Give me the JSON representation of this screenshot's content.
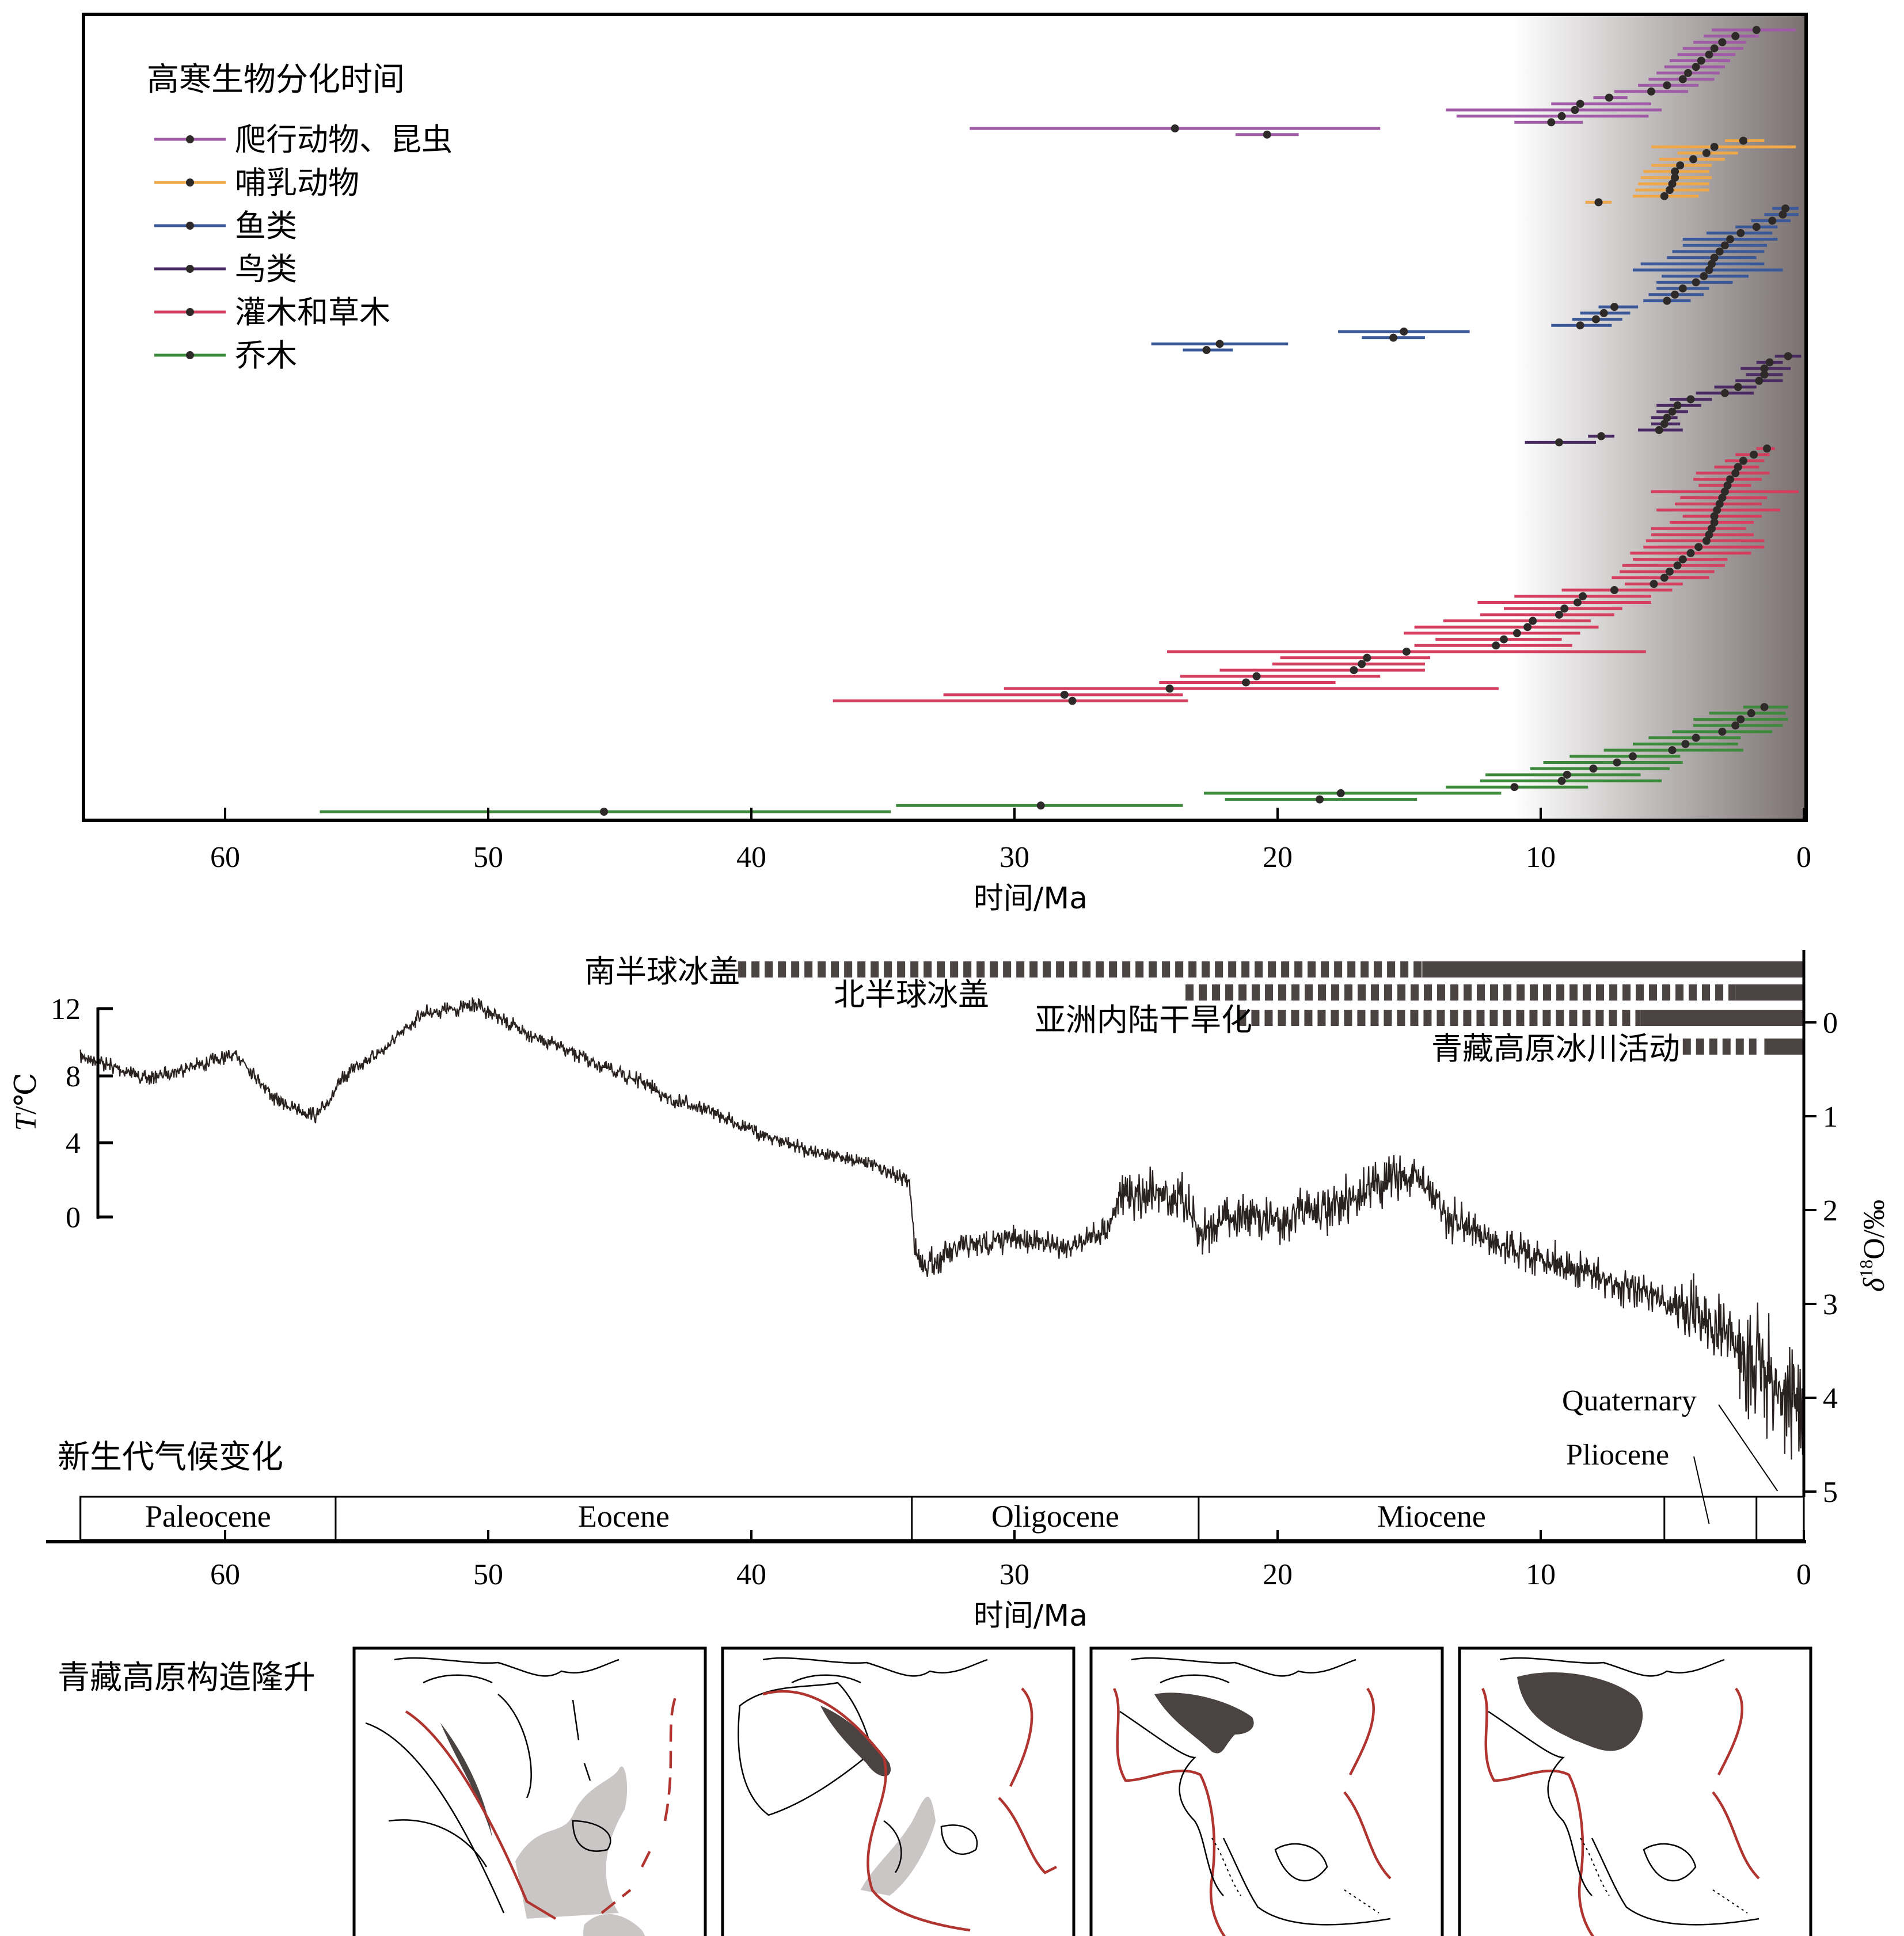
{
  "chart_data": [
    {
      "type": "interval",
      "title": "",
      "xlabel": "时间/Ma",
      "xlim": [
        65.5,
        0
      ],
      "x_reversed": true,
      "xticks": [
        "60",
        "50",
        "40",
        "30",
        "20",
        "10",
        "0"
      ],
      "legend_title": "高寒生物分化时间",
      "legend_position": "top-left",
      "background_gradient": {
        "from_age": 11,
        "color_start": "#ffffff",
        "color_end": "#7a7070"
      },
      "series": [
        {
          "name": "爬行动物、昆虫",
          "color": "#a05ba6",
          "intervals": [
            [
              1.8,
              0.3,
              3.5
            ],
            [
              2.6,
              1.7,
              3.8
            ],
            [
              3.1,
              2.2,
              4.2
            ],
            [
              3.4,
              2.3,
              4.6
            ],
            [
              3.6,
              2.6,
              4.8
            ],
            [
              3.9,
              2.8,
              5.1
            ],
            [
              4.1,
              3.0,
              5.3
            ],
            [
              4.4,
              3.2,
              5.6
            ],
            [
              4.6,
              3.4,
              5.9
            ],
            [
              5.2,
              4.0,
              6.3
            ],
            [
              5.8,
              4.4,
              7.2
            ],
            [
              7.4,
              6.7,
              8.0
            ],
            [
              8.5,
              5.8,
              9.6
            ],
            [
              8.7,
              5.4,
              13.6
            ],
            [
              9.2,
              5.9,
              13.2
            ],
            [
              9.6,
              8.4,
              11.0
            ],
            [
              23.9,
              16.1,
              31.7
            ],
            [
              20.4,
              19.2,
              21.6
            ]
          ]
        },
        {
          "name": "哺乳动物",
          "color": "#eea849",
          "intervals": [
            [
              2.3,
              1.5,
              3.0
            ],
            [
              3.4,
              0.3,
              5.8
            ],
            [
              3.7,
              2.5,
              4.8
            ],
            [
              4.2,
              3.0,
              5.5
            ],
            [
              4.7,
              3.5,
              5.8
            ],
            [
              4.9,
              3.6,
              6.1
            ],
            [
              4.9,
              3.5,
              6.2
            ],
            [
              5.0,
              3.6,
              6.3
            ],
            [
              5.1,
              3.6,
              6.4
            ],
            [
              5.3,
              4.0,
              6.5
            ],
            [
              7.8,
              7.3,
              8.3
            ]
          ]
        },
        {
          "name": "鱼类",
          "color": "#3b5899",
          "intervals": [
            [
              0.7,
              0.2,
              1.2
            ],
            [
              0.8,
              0.2,
              1.5
            ],
            [
              1.2,
              0.5,
              2.0
            ],
            [
              1.8,
              1.0,
              2.6
            ],
            [
              2.4,
              1.2,
              3.7
            ],
            [
              2.8,
              1.0,
              4.6
            ],
            [
              3.0,
              1.4,
              4.6
            ],
            [
              3.2,
              1.5,
              5.0
            ],
            [
              3.4,
              1.8,
              5.2
            ],
            [
              3.5,
              1.5,
              6.2
            ],
            [
              3.6,
              0.8,
              6.5
            ],
            [
              3.8,
              2.1,
              5.4
            ],
            [
              4.1,
              2.7,
              5.6
            ],
            [
              4.6,
              3.6,
              5.6
            ],
            [
              4.9,
              3.8,
              5.9
            ],
            [
              5.2,
              4.3,
              6.1
            ],
            [
              7.2,
              6.3,
              7.8
            ],
            [
              7.6,
              6.6,
              8.5
            ],
            [
              7.9,
              6.9,
              8.8
            ],
            [
              8.5,
              7.3,
              9.6
            ],
            [
              15.2,
              12.7,
              17.7
            ],
            [
              15.6,
              14.4,
              16.8
            ],
            [
              22.2,
              19.6,
              24.8
            ],
            [
              22.7,
              21.7,
              23.6
            ]
          ]
        },
        {
          "name": "鸟类",
          "color": "#4a2a63",
          "intervals": [
            [
              0.6,
              0.1,
              1.1
            ],
            [
              1.3,
              0.8,
              1.8
            ],
            [
              1.5,
              0.5,
              2.4
            ],
            [
              1.5,
              0.8,
              2.2
            ],
            [
              1.7,
              0.8,
              2.6
            ],
            [
              2.5,
              1.8,
              3.4
            ],
            [
              3.0,
              1.9,
              4.1
            ],
            [
              4.3,
              3.5,
              5.1
            ],
            [
              4.8,
              3.9,
              5.6
            ],
            [
              5.0,
              4.4,
              5.6
            ],
            [
              5.2,
              4.8,
              5.8
            ],
            [
              5.3,
              4.7,
              5.8
            ],
            [
              5.5,
              4.6,
              6.3
            ],
            [
              7.7,
              7.2,
              8.2
            ],
            [
              9.3,
              7.9,
              10.6
            ]
          ]
        },
        {
          "name": "灌木和草木",
          "color": "#d43f5f",
          "intervals": [
            [
              1.4,
              1.1,
              1.8
            ],
            [
              1.9,
              1.3,
              2.6
            ],
            [
              2.3,
              1.5,
              3.0
            ],
            [
              2.5,
              1.7,
              3.4
            ],
            [
              2.6,
              1.3,
              4.1
            ],
            [
              2.8,
              1.6,
              4.2
            ],
            [
              2.9,
              2.0,
              4.0
            ],
            [
              3.0,
              0.2,
              5.8
            ],
            [
              3.1,
              1.4,
              4.7
            ],
            [
              3.2,
              1.6,
              4.9
            ],
            [
              3.3,
              0.9,
              5.6
            ],
            [
              3.4,
              1.6,
              4.6
            ],
            [
              3.4,
              1.9,
              5.1
            ],
            [
              3.5,
              2.2,
              5.8
            ],
            [
              3.6,
              1.9,
              5.8
            ],
            [
              3.7,
              1.5,
              6.0
            ],
            [
              4.0,
              1.5,
              6.1
            ],
            [
              4.3,
              2.0,
              6.6
            ],
            [
              4.6,
              2.9,
              6.5
            ],
            [
              4.8,
              3.0,
              6.9
            ],
            [
              5.1,
              3.4,
              7.0
            ],
            [
              5.3,
              3.6,
              7.3
            ],
            [
              5.7,
              4.6,
              6.8
            ],
            [
              7.2,
              5.0,
              9.2
            ],
            [
              8.4,
              5.8,
              11.0
            ],
            [
              8.6,
              5.8,
              12.4
            ],
            [
              9.1,
              6.9,
              11.4
            ],
            [
              9.3,
              7.2,
              12.3
            ],
            [
              10.3,
              8.1,
              13.7
            ],
            [
              10.5,
              7.8,
              14.8
            ],
            [
              10.9,
              8.5,
              15.2
            ],
            [
              11.4,
              9.2,
              14.0
            ],
            [
              11.7,
              8.8,
              14.8
            ],
            [
              15.1,
              6.0,
              24.2
            ],
            [
              16.6,
              14.2,
              19.9
            ],
            [
              16.8,
              14.4,
              20.2
            ],
            [
              17.1,
              14.4,
              22.2
            ],
            [
              20.8,
              16.1,
              23.7
            ],
            [
              21.2,
              17.8,
              24.5
            ],
            [
              24.1,
              11.6,
              30.4
            ],
            [
              28.1,
              23.6,
              32.7
            ],
            [
              27.8,
              23.4,
              36.9
            ]
          ]
        },
        {
          "name": "乔木",
          "color": "#3e8a3c",
          "intervals": [
            [
              1.5,
              0.6,
              2.3
            ],
            [
              2.0,
              0.7,
              3.6
            ],
            [
              2.4,
              0.6,
              4.2
            ],
            [
              2.6,
              0.8,
              4.2
            ],
            [
              3.1,
              1.2,
              5.0
            ],
            [
              4.1,
              2.4,
              5.9
            ],
            [
              4.5,
              2.5,
              6.5
            ],
            [
              5.0,
              2.3,
              7.6
            ],
            [
              6.5,
              4.7,
              8.9
            ],
            [
              7.1,
              4.6,
              9.9
            ],
            [
              8.0,
              5.1,
              10.4
            ],
            [
              9.0,
              6.2,
              12.1
            ],
            [
              9.2,
              5.4,
              12.3
            ],
            [
              11.0,
              8.2,
              13.6
            ],
            [
              17.6,
              11.5,
              22.8
            ],
            [
              18.4,
              14.7,
              22.0
            ],
            [
              29.0,
              23.6,
              34.5
            ],
            [
              45.6,
              34.7,
              56.4
            ]
          ]
        }
      ]
    },
    {
      "type": "line",
      "title": "新生代气候变化",
      "xlabel": "时间/Ma",
      "xlim": [
        65.5,
        0
      ],
      "x_reversed": true,
      "xticks": [
        "60",
        "50",
        "40",
        "30",
        "20",
        "10",
        "0"
      ],
      "left_axis": {
        "label_italic": "T",
        "label_unit": "/℃",
        "ticks": [
          "12",
          "8",
          "4",
          "0"
        ],
        "range": [
          0,
          12
        ]
      },
      "right_axis": {
        "label_italic": "δ",
        "label_sup": "18",
        "label_rest": "O/‰",
        "ticks": [
          "0",
          "1",
          "2",
          "3",
          "4",
          "5"
        ],
        "range": [
          0,
          5
        ],
        "reversed": true
      },
      "series_color": "#2a2220",
      "series": [
        {
          "x": [
            65.5,
            63,
            61,
            59.5,
            58,
            56.5,
            55.5,
            55,
            54,
            52.5,
            51,
            50.5,
            49,
            47,
            45,
            44,
            43,
            42.5,
            41.5,
            40,
            38,
            35.5,
            34,
            33.8,
            33.5,
            32,
            30,
            28,
            26.5,
            26,
            25,
            23.5,
            23,
            22,
            20,
            18,
            16.5,
            15.5,
            14.5,
            13.5,
            12,
            10,
            8,
            6,
            4,
            3,
            2,
            1,
            0
          ],
          "y": [
            0.35,
            0.6,
            0.45,
            0.35,
            0.85,
            1.0,
            0.6,
            0.45,
            0.3,
            -0.1,
            -0.15,
            -0.2,
            0.05,
            0.3,
            0.55,
            0.65,
            0.85,
            0.85,
            0.95,
            1.15,
            1.35,
            1.5,
            1.7,
            2.4,
            2.6,
            2.4,
            2.3,
            2.4,
            2.2,
            1.85,
            1.8,
            1.9,
            2.3,
            2.05,
            2.1,
            2.0,
            1.75,
            1.65,
            1.7,
            2.1,
            2.3,
            2.5,
            2.7,
            2.9,
            3.1,
            3.3,
            3.6,
            3.9,
            4.1
          ]
        }
      ],
      "bars": [
        {
          "label": "南半球冰盖",
          "dashed": [
            40.5,
            14.5
          ],
          "solid": [
            14.5,
            0
          ]
        },
        {
          "label": "北半球冰盖",
          "dashed": [
            23.5,
            2.6
          ],
          "solid": [
            2.6,
            0
          ]
        },
        {
          "label": "亚洲内陆干旱化",
          "dashed": [
            21.5,
            6.2
          ],
          "solid": [
            6.2,
            0
          ]
        },
        {
          "label": "青藏高原冰川活动",
          "dashed": [
            4.6,
            1.8
          ],
          "solid": [
            1.5,
            0
          ]
        }
      ],
      "epochs": [
        {
          "name": "Paleocene",
          "from": 65.5,
          "to": 55.8
        },
        {
          "name": "Eocene",
          "from": 55.8,
          "to": 33.9
        },
        {
          "name": "Oligocene",
          "from": 33.9,
          "to": 23.0
        },
        {
          "name": "Miocene",
          "from": 23.0,
          "to": 5.3
        },
        {
          "name": "",
          "from": 5.3,
          "to": 1.8
        },
        {
          "name": "",
          "from": 1.8,
          "to": 0
        }
      ],
      "epoch_callouts": [
        "Quaternary",
        "Pliocene"
      ]
    }
  ],
  "tectonics": {
    "title": "青藏高原构造隆升",
    "colors": {
      "suture": "#b03530",
      "uplift": "#4a4342",
      "shallow": "#c9c6c5"
    },
    "panels": [
      {
        "stage": 1,
        "icon": "early-collision-map-icon"
      },
      {
        "stage": 2,
        "icon": "initial-uplift-map-icon"
      },
      {
        "stage": 3,
        "icon": "plateau-growth-map-icon"
      },
      {
        "stage": 4,
        "icon": "mature-plateau-map-icon"
      }
    ]
  }
}
